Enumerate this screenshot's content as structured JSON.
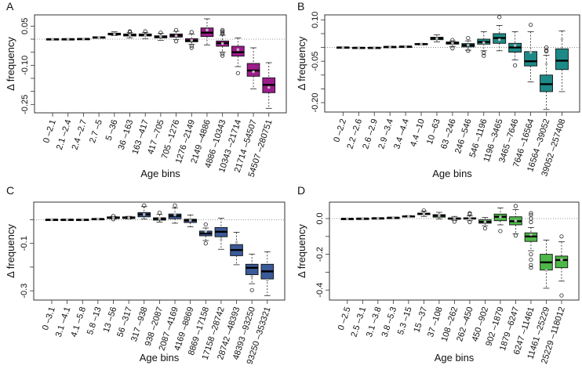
{
  "chart_data": [
    {
      "type": "box",
      "panel_label": "A",
      "xlabel": "Age bins",
      "ylabel": "Δ frequency",
      "color": "#9c1c8c",
      "ylim": [
        -0.282,
        0.093
      ],
      "reference_line": 0,
      "yticks": [
        0.05,
        0,
        -0.05,
        -0.1,
        -0.15,
        -0.2,
        -0.25
      ],
      "ytick_labels": [
        "0.05",
        "",
        "",
        "-0.10",
        "",
        "",
        "-0.25"
      ],
      "categories": [
        "0 –2.1",
        "2.1 –2.4",
        "2.4 –2.7",
        "2.7 –5",
        "5 –36",
        "36 –163",
        "163 –417",
        "417 –705",
        "705 –1276",
        "1276 –2149",
        "2149 –4886",
        "4886 –10343",
        "10343 –21714",
        "21714 –54507",
        "54507 –280751"
      ],
      "boxes": [
        {
          "lo": -0.001,
          "q1": -0.001,
          "med": 0,
          "q3": 0.001,
          "hi": 0.001,
          "mean": 0,
          "out": []
        },
        {
          "lo": -0.001,
          "q1": -0.001,
          "med": 0,
          "q3": 0.001,
          "hi": 0.001,
          "mean": 0,
          "out": []
        },
        {
          "lo": 0,
          "q1": 0,
          "med": 0.001,
          "q3": 0.002,
          "hi": 0.002,
          "mean": 0.001,
          "out": []
        },
        {
          "lo": 0.005,
          "q1": 0.006,
          "med": 0.007,
          "q3": 0.008,
          "hi": 0.009,
          "mean": 0.007,
          "out": []
        },
        {
          "lo": 0.014,
          "q1": 0.016,
          "med": 0.02,
          "q3": 0.023,
          "hi": 0.028,
          "mean": 0.019,
          "out": []
        },
        {
          "lo": 0.005,
          "q1": 0.012,
          "med": 0.016,
          "q3": 0.02,
          "hi": 0.025,
          "mean": 0.016,
          "out": [
            0.03,
            0.027
          ]
        },
        {
          "lo": 0.002,
          "q1": 0.012,
          "med": 0.016,
          "q3": 0.02,
          "hi": 0.026,
          "mean": 0.015,
          "out": [
            0.03
          ]
        },
        {
          "lo": -0.005,
          "q1": 0.005,
          "med": 0.009,
          "q3": 0.013,
          "hi": 0.022,
          "mean": 0.01,
          "out": [
            0.025
          ]
        },
        {
          "lo": -0.002,
          "q1": 0.008,
          "med": 0.014,
          "q3": 0.02,
          "hi": 0.03,
          "mean": 0.013,
          "out": [
            0.035,
            -0.008
          ]
        },
        {
          "lo": -0.02,
          "q1": -0.01,
          "med": -0.005,
          "q3": 0.002,
          "hi": 0.02,
          "mean": -0.004,
          "out": [
            0.027,
            -0.025,
            -0.033
          ]
        },
        {
          "lo": -0.022,
          "q1": 0.01,
          "med": 0.025,
          "q3": 0.043,
          "hi": 0.078,
          "mean": 0.035,
          "out": []
        },
        {
          "lo": -0.05,
          "q1": -0.027,
          "med": -0.015,
          "q3": -0.007,
          "hi": 0.015,
          "mean": -0.017,
          "out": [
            0.035,
            0.03,
            0.025,
            0.02,
            -0.055,
            -0.063
          ]
        },
        {
          "lo": -0.105,
          "q1": -0.065,
          "med": -0.05,
          "q3": -0.027,
          "hi": 0.005,
          "mean": -0.04,
          "out": [
            -0.13
          ]
        },
        {
          "lo": -0.19,
          "q1": -0.142,
          "med": -0.12,
          "q3": -0.093,
          "hi": -0.033,
          "mean": -0.125,
          "out": []
        },
        {
          "lo": -0.265,
          "q1": -0.205,
          "med": -0.175,
          "q3": -0.148,
          "hi": -0.09,
          "mean": -0.185,
          "out": []
        }
      ]
    },
    {
      "type": "box",
      "panel_label": "B",
      "xlabel": "Age bins",
      "ylabel": "Δ frequency",
      "color": "#1e8a87",
      "ylim": [
        -0.234,
        0.118
      ],
      "reference_line": 0,
      "yticks": [
        0.1,
        0.05,
        0,
        -0.05,
        -0.1,
        -0.15,
        -0.2
      ],
      "ytick_labels": [
        "0.10",
        "",
        "",
        "-0.05",
        "",
        "",
        "-0.20"
      ],
      "categories": [
        "0 –2.2",
        "2.2 –2.6",
        "2.6 –2.9",
        "2.9 –3.4",
        "3.4 –4.4",
        "4.4 –10",
        "10 –63",
        "63 –246",
        "246 –546",
        "546 –1196",
        "1196 –3465",
        "3465 –7646",
        "7646 –16564",
        "16564 –39052",
        "39052 –257408"
      ],
      "boxes": [
        {
          "lo": -0.001,
          "q1": -0.001,
          "med": 0,
          "q3": 0.001,
          "hi": 0.001,
          "mean": 0,
          "out": []
        },
        {
          "lo": -0.002,
          "q1": -0.002,
          "med": -0.001,
          "q3": 0,
          "hi": 0,
          "mean": -0.001,
          "out": []
        },
        {
          "lo": -0.002,
          "q1": -0.002,
          "med": -0.001,
          "q3": 0,
          "hi": 0,
          "mean": -0.001,
          "out": []
        },
        {
          "lo": 0,
          "q1": 0.001,
          "med": 0.002,
          "q3": 0.003,
          "hi": 0.004,
          "mean": 0.002,
          "out": []
        },
        {
          "lo": 0.001,
          "q1": 0.002,
          "med": 0.003,
          "q3": 0.004,
          "hi": 0.005,
          "mean": 0.003,
          "out": []
        },
        {
          "lo": 0.009,
          "q1": 0.01,
          "med": 0.012,
          "q3": 0.014,
          "hi": 0.015,
          "mean": 0.012,
          "out": []
        },
        {
          "lo": 0.02,
          "q1": 0.028,
          "med": 0.033,
          "q3": 0.037,
          "hi": 0.046,
          "mean": 0.032,
          "out": []
        },
        {
          "lo": 0.004,
          "q1": 0.012,
          "med": 0.016,
          "q3": 0.02,
          "hi": 0.024,
          "mean": 0.016,
          "out": [
            0.027,
            -0.003
          ]
        },
        {
          "lo": -0.01,
          "q1": 0.002,
          "med": 0.008,
          "q3": 0.014,
          "hi": 0.024,
          "mean": 0.008,
          "out": [
            0.034,
            -0.012
          ]
        },
        {
          "lo": -0.012,
          "q1": 0.012,
          "med": 0.02,
          "q3": 0.03,
          "hi": 0.057,
          "mean": 0.017,
          "out": [
            -0.02,
            -0.03
          ]
        },
        {
          "lo": -0.012,
          "q1": 0.015,
          "med": 0.034,
          "q3": 0.05,
          "hi": 0.08,
          "mean": 0.028,
          "out": [
            0.11
          ]
        },
        {
          "lo": -0.045,
          "q1": -0.017,
          "med": 0,
          "q3": 0.015,
          "hi": 0.057,
          "mean": 0.007,
          "out": [
            -0.065
          ]
        },
        {
          "lo": -0.125,
          "q1": -0.067,
          "med": -0.05,
          "q3": -0.015,
          "hi": 0.057,
          "mean": -0.018,
          "out": [
            0.082
          ]
        },
        {
          "lo": -0.225,
          "q1": -0.16,
          "med": -0.133,
          "q3": -0.1,
          "hi": -0.028,
          "mean": -0.06,
          "out": [
            0,
            -0.01,
            -0.014
          ]
        },
        {
          "lo": -0.16,
          "q1": -0.08,
          "med": -0.048,
          "q3": -0.005,
          "hi": 0.06,
          "mean": 0.03,
          "out": []
        }
      ]
    },
    {
      "type": "box",
      "panel_label": "C",
      "xlabel": "Age bins",
      "ylabel": "Δ frequency",
      "color": "#3b5a98",
      "ylim": [
        -0.339,
        0.074
      ],
      "reference_line": 0,
      "yticks": [
        0,
        -0.1,
        -0.2,
        -0.3
      ],
      "ytick_labels": [
        "",
        "-0.1",
        "",
        "-0.3"
      ],
      "categories": [
        "0 –3.1",
        "3.1 –4.1",
        "4.1 –5.8",
        "5.8 –13",
        "13 –56",
        "56 –317",
        "317 –938",
        "938 –2087",
        "2087 –4169",
        "4169 –8869",
        "8869 –17158",
        "17158 –28742",
        "28742 –48393",
        "48393 –93250",
        "93250 –353321"
      ],
      "boxes": [
        {
          "lo": -0.001,
          "q1": -0.001,
          "med": 0,
          "q3": 0.001,
          "hi": 0.001,
          "mean": 0,
          "out": []
        },
        {
          "lo": -0.001,
          "q1": -0.001,
          "med": 0,
          "q3": 0.001,
          "hi": 0.001,
          "mean": 0,
          "out": []
        },
        {
          "lo": -0.001,
          "q1": -0.001,
          "med": 0,
          "q3": 0.001,
          "hi": 0.001,
          "mean": 0,
          "out": []
        },
        {
          "lo": 0.001,
          "q1": 0.002,
          "med": 0.003,
          "q3": 0.004,
          "hi": 0.005,
          "mean": 0.003,
          "out": []
        },
        {
          "lo": 0.003,
          "q1": 0.005,
          "med": 0.008,
          "q3": 0.012,
          "hi": 0.014,
          "mean": 0.008,
          "out": [
            0.016,
            0.002
          ]
        },
        {
          "lo": 0.003,
          "q1": 0.005,
          "med": 0.008,
          "q3": 0.012,
          "hi": 0.014,
          "mean": 0.008,
          "out": []
        },
        {
          "lo": 0.003,
          "q1": 0.012,
          "med": 0.022,
          "q3": 0.03,
          "hi": 0.055,
          "mean": 0.022,
          "out": [
            0.06
          ]
        },
        {
          "lo": -0.01,
          "q1": -0.002,
          "med": 0.004,
          "q3": 0.008,
          "hi": 0.022,
          "mean": 0.004,
          "out": [
            0.03
          ]
        },
        {
          "lo": -0.015,
          "q1": 0.004,
          "med": 0.016,
          "q3": 0.024,
          "hi": 0.05,
          "mean": 0.02,
          "out": [
            0.06
          ]
        },
        {
          "lo": -0.03,
          "q1": -0.012,
          "med": -0.003,
          "q3": 0.002,
          "hi": 0.02,
          "mean": -0.003,
          "out": []
        },
        {
          "lo": -0.088,
          "q1": -0.068,
          "med": -0.058,
          "q3": -0.048,
          "hi": -0.035,
          "mean": -0.05,
          "out": [
            -0.02,
            -0.1
          ]
        },
        {
          "lo": -0.125,
          "q1": -0.072,
          "med": -0.051,
          "q3": -0.033,
          "hi": 0.006,
          "mean": -0.085,
          "out": []
        },
        {
          "lo": -0.19,
          "q1": -0.152,
          "med": -0.128,
          "q3": -0.105,
          "hi": -0.053,
          "mean": -0.095,
          "out": []
        },
        {
          "lo": -0.27,
          "q1": -0.232,
          "med": -0.203,
          "q3": -0.188,
          "hi": -0.145,
          "mean": -0.24,
          "out": [
            -0.297
          ]
        },
        {
          "lo": -0.32,
          "q1": -0.25,
          "med": -0.218,
          "q3": -0.188,
          "hi": -0.135,
          "mean": -0.255,
          "out": []
        }
      ]
    },
    {
      "type": "box",
      "panel_label": "D",
      "xlabel": "Age bins",
      "ylabel": "Δ frequency",
      "color": "#4db848",
      "ylim": [
        -0.456,
        0.092
      ],
      "reference_line": 0,
      "yticks": [
        0,
        -0.1,
        -0.2,
        -0.3,
        -0.4
      ],
      "ytick_labels": [
        "0.0",
        "",
        "-0.2",
        "",
        "-0.4"
      ],
      "categories": [
        "0 –2.5",
        "2.5 –3.1",
        "3.1 –3.8",
        "3.8 –5.3",
        "5.3 –15",
        "15 –37",
        "37 –108",
        "108 –262",
        "262 –450",
        "450 –902",
        "902 –1879",
        "1879 –6247",
        "6247 –11461",
        "11461 –25229",
        "25229 –118012"
      ],
      "boxes": [
        {
          "lo": -0.003,
          "q1": -0.002,
          "med": -0.001,
          "q3": 0,
          "hi": 0.001,
          "mean": -0.001,
          "out": []
        },
        {
          "lo": -0.001,
          "q1": -0.001,
          "med": 0,
          "q3": 0.001,
          "hi": 0.001,
          "mean": 0,
          "out": []
        },
        {
          "lo": 0,
          "q1": 0.001,
          "med": 0.002,
          "q3": 0.003,
          "hi": 0.004,
          "mean": 0.002,
          "out": []
        },
        {
          "lo": 0.003,
          "q1": 0.004,
          "med": 0.005,
          "q3": 0.006,
          "hi": 0.007,
          "mean": 0.005,
          "out": []
        },
        {
          "lo": 0.008,
          "q1": 0.01,
          "med": 0.012,
          "q3": 0.015,
          "hi": 0.017,
          "mean": 0.012,
          "out": []
        },
        {
          "lo": 0.012,
          "q1": 0.022,
          "med": 0.027,
          "q3": 0.03,
          "hi": 0.042,
          "mean": 0.027,
          "out": [
            0.045
          ]
        },
        {
          "lo": -0.003,
          "q1": 0.008,
          "med": 0.016,
          "q3": 0.022,
          "hi": 0.035,
          "mean": 0.016,
          "out": []
        },
        {
          "lo": -0.01,
          "q1": -0.004,
          "med": 0,
          "q3": 0.004,
          "hi": 0.012,
          "mean": 0,
          "out": [
            -0.017
          ]
        },
        {
          "lo": -0.012,
          "q1": -0.003,
          "med": 0.001,
          "q3": 0.004,
          "hi": 0.015,
          "mean": 0.001,
          "out": [
            0.03,
            0.025,
            -0.02
          ]
        },
        {
          "lo": -0.04,
          "q1": -0.026,
          "med": -0.018,
          "q3": -0.007,
          "hi": 0.006,
          "mean": -0.018,
          "out": [
            -0.055
          ]
        },
        {
          "lo": -0.035,
          "q1": -0.012,
          "med": 0.01,
          "q3": 0.025,
          "hi": 0.06,
          "mean": 0.008,
          "out": [
            -0.07
          ]
        },
        {
          "lo": -0.085,
          "q1": -0.035,
          "med": -0.015,
          "q3": 0.01,
          "hi": 0.05,
          "mean": -0.012,
          "out": [
            0.07,
            -0.095
          ]
        },
        {
          "lo": -0.18,
          "q1": -0.128,
          "med": -0.1,
          "q3": -0.08,
          "hi": -0.05,
          "mean": -0.09,
          "out": [
            0.03,
            0.02,
            0,
            -0.02,
            -0.2,
            -0.23,
            -0.26,
            -0.275
          ]
        },
        {
          "lo": -0.39,
          "q1": -0.288,
          "med": -0.245,
          "q3": -0.2,
          "hi": -0.12,
          "mean": -0.29,
          "out": []
        },
        {
          "lo": -0.35,
          "q1": -0.275,
          "med": -0.232,
          "q3": -0.21,
          "hi": -0.13,
          "mean": -0.23,
          "out": [
            -0.1,
            -0.43
          ]
        }
      ]
    }
  ]
}
